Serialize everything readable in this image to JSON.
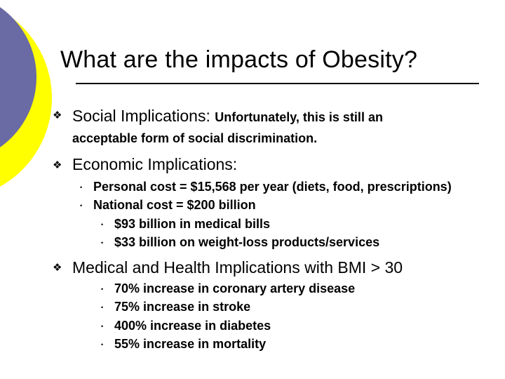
{
  "slide": {
    "title": "What are the impacts of Obesity?",
    "sections": [
      {
        "heading": "Social Implications:",
        "text_line1": "Unfortunately, this is still an",
        "text_line2": "acceptable form of social discrimination."
      },
      {
        "heading": "Economic Implications:",
        "items": [
          "Personal cost  = $15,568 per year (diets, food, prescriptions)",
          "National cost = $200 billion"
        ],
        "subitems": [
          "$93 billion in medical bills",
          "$33 billion on weight-loss products/services"
        ]
      },
      {
        "heading": "Medical and Health Implications with BMI > 30",
        "items": [
          "70% increase in coronary artery disease",
          "75% increase in stroke",
          "400% increase in diabetes",
          "55% increase in mortality"
        ]
      }
    ]
  },
  "colors": {
    "circle_purple": "#6a6aa4",
    "circle_yellow": "#ffff00"
  }
}
